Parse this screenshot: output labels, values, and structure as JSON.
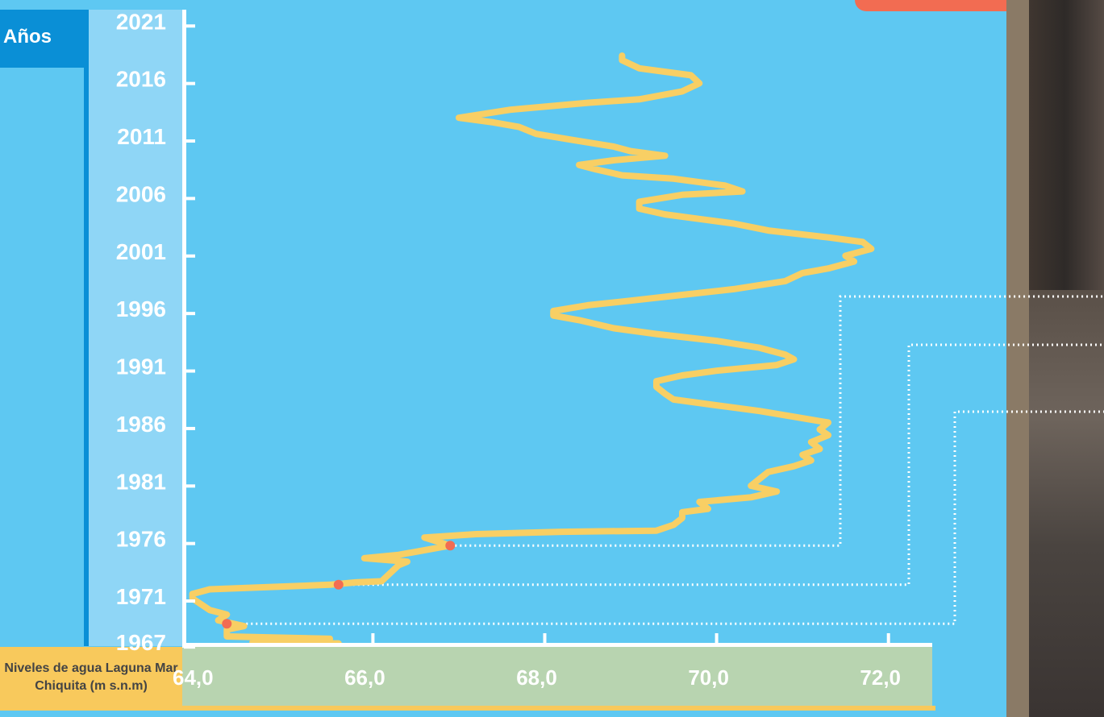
{
  "chart_data": {
    "type": "line",
    "orientation": "vertical-time",
    "ylabel": "Años",
    "xlabel": "Niveles de agua Laguna Mar Chiquita (m s.n.m)",
    "y_ticks": [
      "2021",
      "2016",
      "2011",
      "2006",
      "2001",
      "1996",
      "1991",
      "1986",
      "1981",
      "1976",
      "1971",
      "1967"
    ],
    "y_tick_values": [
      2021,
      2016,
      2011,
      2006,
      2001,
      1996,
      1991,
      1986,
      1981,
      1976,
      1971,
      1967
    ],
    "x_ticks": [
      "64,0",
      "66,0",
      "68,0",
      "70,0",
      "72,0"
    ],
    "x_tick_values": [
      64,
      66,
      68,
      70,
      72
    ],
    "xlim": [
      63.8,
      72.5
    ],
    "ylim": [
      1966.8,
      2022
    ],
    "series": [
      {
        "color": "#f8cf64",
        "points": [
          [
            65.6,
            1966.9
          ],
          [
            64.6,
            1967.0
          ],
          [
            65.5,
            1967.3
          ],
          [
            64.3,
            1967.5
          ],
          [
            64.3,
            1968.1
          ],
          [
            64.5,
            1968.4
          ],
          [
            64.2,
            1968.9
          ],
          [
            64.3,
            1969.4
          ],
          [
            64.1,
            1969.8
          ],
          [
            63.9,
            1970.8
          ],
          [
            63.9,
            1971.2
          ],
          [
            64.1,
            1971.6
          ],
          [
            65.5,
            1972.0
          ],
          [
            65.8,
            1972.2
          ],
          [
            66.1,
            1972.3
          ],
          [
            66.3,
            1973.7
          ],
          [
            66.4,
            1974.0
          ],
          [
            65.9,
            1974.3
          ],
          [
            66.3,
            1974.6
          ],
          [
            66.9,
            1975.4
          ],
          [
            66.6,
            1976.1
          ],
          [
            67.2,
            1976.4
          ],
          [
            68.2,
            1976.6
          ],
          [
            69.3,
            1976.7
          ],
          [
            69.5,
            1977.2
          ],
          [
            69.6,
            1977.8
          ],
          [
            69.6,
            1978.3
          ],
          [
            69.9,
            1978.6
          ],
          [
            69.8,
            1979.2
          ],
          [
            70.4,
            1979.6
          ],
          [
            70.7,
            1980.1
          ],
          [
            70.4,
            1980.6
          ],
          [
            70.5,
            1981.2
          ],
          [
            70.6,
            1981.8
          ],
          [
            70.9,
            1982.3
          ],
          [
            71.1,
            1982.8
          ],
          [
            71.0,
            1983.3
          ],
          [
            71.2,
            1983.8
          ],
          [
            71.1,
            1984.4
          ],
          [
            71.3,
            1985.0
          ],
          [
            71.2,
            1985.5
          ],
          [
            71.3,
            1986.1
          ],
          [
            70.9,
            1986.6
          ],
          [
            70.5,
            1987.1
          ],
          [
            70.0,
            1987.6
          ],
          [
            69.5,
            1988.1
          ],
          [
            69.4,
            1988.6
          ],
          [
            69.3,
            1989.2
          ],
          [
            69.3,
            1989.7
          ],
          [
            69.6,
            1990.2
          ],
          [
            70.0,
            1990.6
          ],
          [
            70.7,
            1991.1
          ],
          [
            70.9,
            1991.6
          ],
          [
            70.8,
            1992.0
          ],
          [
            70.5,
            1992.6
          ],
          [
            70.0,
            1993.2
          ],
          [
            69.3,
            1993.8
          ],
          [
            68.8,
            1994.3
          ],
          [
            68.4,
            1995.0
          ],
          [
            68.1,
            1995.4
          ],
          [
            68.1,
            1995.8
          ],
          [
            68.5,
            1996.3
          ],
          [
            69.0,
            1996.7
          ],
          [
            69.6,
            1997.2
          ],
          [
            70.2,
            1997.7
          ],
          [
            70.8,
            1998.4
          ],
          [
            71.0,
            1999.1
          ],
          [
            71.3,
            1999.5
          ],
          [
            71.6,
            2000.1
          ],
          [
            71.5,
            2000.6
          ],
          [
            71.8,
            2001.2
          ],
          [
            71.7,
            2001.8
          ],
          [
            71.3,
            2002.2
          ],
          [
            70.6,
            2002.8
          ],
          [
            70.2,
            2003.4
          ],
          [
            69.8,
            2003.8
          ],
          [
            69.4,
            2004.2
          ],
          [
            69.1,
            2004.7
          ],
          [
            69.1,
            2005.3
          ],
          [
            69.6,
            2005.9
          ],
          [
            70.3,
            2006.2
          ],
          [
            70.1,
            2006.7
          ],
          [
            69.5,
            2007.3
          ],
          [
            68.9,
            2007.6
          ],
          [
            68.6,
            2008.1
          ],
          [
            68.4,
            2008.5
          ],
          [
            68.8,
            2008.9
          ],
          [
            69.4,
            2009.3
          ],
          [
            69.0,
            2009.7
          ],
          [
            68.8,
            2010.1
          ],
          [
            68.3,
            2010.7
          ],
          [
            67.9,
            2011.2
          ],
          [
            67.7,
            2011.8
          ],
          [
            67.4,
            2012.2
          ],
          [
            67.0,
            2012.6
          ],
          [
            67.6,
            2013.3
          ],
          [
            68.5,
            2013.9
          ],
          [
            69.1,
            2014.2
          ],
          [
            69.6,
            2014.9
          ],
          [
            69.8,
            2015.6
          ],
          [
            69.7,
            2016.3
          ],
          [
            69.1,
            2016.9
          ],
          [
            68.9,
            2017.6
          ],
          [
            68.9,
            2018.0
          ]
        ]
      }
    ],
    "markers": [
      {
        "x": 66.9,
        "y": 1975.4,
        "color": "#f26c52"
      },
      {
        "x": 65.6,
        "y": 1972.0,
        "color": "#f26c52"
      },
      {
        "x": 64.3,
        "y": 1968.6,
        "color": "#f26c52"
      }
    ],
    "grid": false
  }
}
